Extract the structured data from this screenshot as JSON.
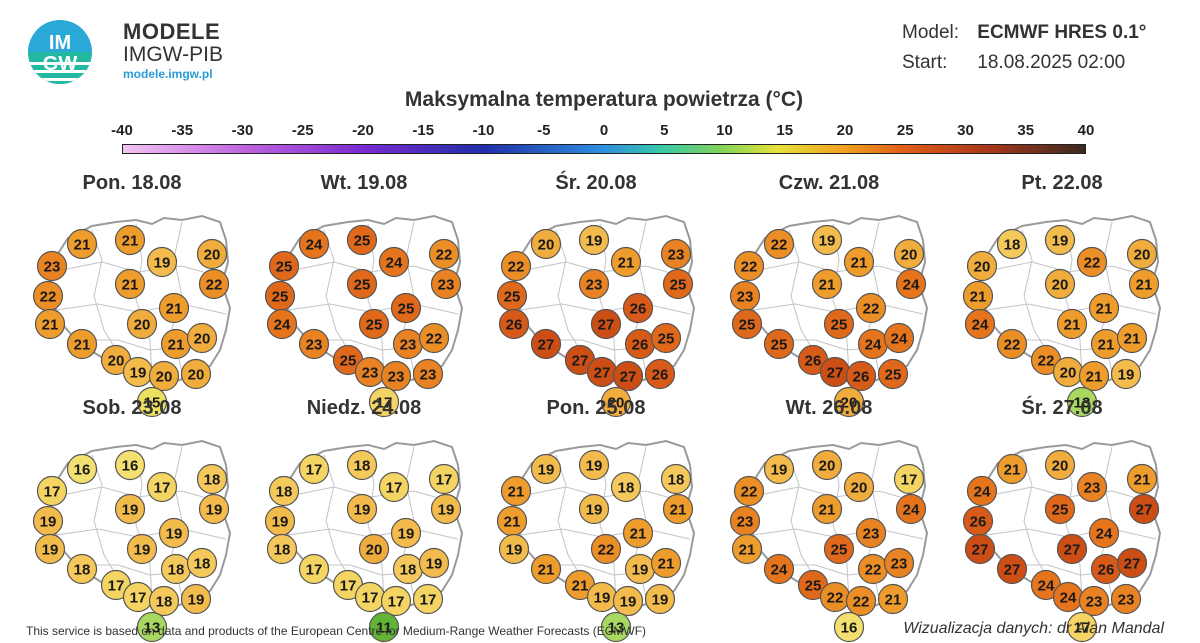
{
  "header": {
    "brand_name": "MODELE",
    "brand_org": "IMGW-PIB",
    "brand_url": "modele.imgw.pl",
    "logo_text_top": "IM",
    "logo_text_bottom": "GW",
    "model_label": "Model:",
    "model_value": "ECMWF HRES 0.1°",
    "start_label": "Start:",
    "start_value": "18.08.2025 02:00"
  },
  "title": "Maksymalna temperatura powietrza (°C)",
  "scale": {
    "ticks": [
      "-40",
      "-35",
      "-30",
      "-25",
      "-20",
      "-15",
      "-10",
      "-5",
      "0",
      "5",
      "10",
      "15",
      "20",
      "25",
      "30",
      "35",
      "40"
    ],
    "min": -40,
    "max": 40
  },
  "colors": {
    "t11": "#62b436",
    "t13": "#a8d860",
    "t15": "#ede060",
    "t16": "#f3e070",
    "t17": "#f4d462",
    "t18": "#f4c85a",
    "t19": "#f2bb4c",
    "t20": "#f0ac3c",
    "t21": "#ee9c2c",
    "t22": "#eb8e26",
    "t23": "#e98222",
    "t24": "#e5741c",
    "t25": "#e0681a",
    "t26": "#d85a18",
    "t27": "#cc4e14"
  },
  "maps": [
    {
      "label": "Pon. 18.08",
      "temps": [
        21,
        21,
        23,
        19,
        20,
        21,
        22,
        22,
        21,
        21,
        20,
        21,
        20,
        21,
        20,
        19,
        20,
        20,
        15
      ]
    },
    {
      "label": "Wt. 19.08",
      "temps": [
        24,
        25,
        25,
        24,
        22,
        25,
        25,
        23,
        25,
        24,
        25,
        23,
        22,
        23,
        25,
        23,
        23,
        23,
        17
      ]
    },
    {
      "label": "Śr. 20.08",
      "temps": [
        20,
        19,
        22,
        21,
        23,
        23,
        25,
        25,
        26,
        26,
        27,
        26,
        25,
        27,
        27,
        27,
        27,
        26,
        20
      ]
    },
    {
      "label": "Czw. 21.08",
      "temps": [
        22,
        19,
        22,
        21,
        20,
        21,
        23,
        24,
        22,
        25,
        25,
        24,
        24,
        25,
        26,
        27,
        26,
        25,
        20
      ]
    },
    {
      "label": "Pt. 22.08",
      "temps": [
        18,
        19,
        20,
        22,
        20,
        20,
        21,
        21,
        21,
        24,
        21,
        21,
        21,
        22,
        22,
        20,
        21,
        19,
        13
      ]
    },
    {
      "label": "Sob. 23.08",
      "temps": [
        16,
        16,
        17,
        17,
        18,
        19,
        19,
        19,
        19,
        19,
        19,
        18,
        18,
        18,
        17,
        17,
        18,
        19,
        13
      ]
    },
    {
      "label": "Niedz. 24.08",
      "temps": [
        17,
        18,
        18,
        17,
        17,
        19,
        19,
        19,
        19,
        18,
        20,
        18,
        19,
        17,
        17,
        17,
        17,
        17,
        11
      ]
    },
    {
      "label": "Pon. 25.08",
      "temps": [
        19,
        19,
        21,
        18,
        18,
        19,
        21,
        21,
        21,
        19,
        22,
        19,
        21,
        21,
        21,
        19,
        19,
        19,
        13
      ]
    },
    {
      "label": "Wt. 26.08",
      "temps": [
        19,
        20,
        22,
        20,
        17,
        21,
        23,
        24,
        23,
        21,
        25,
        22,
        23,
        24,
        25,
        22,
        22,
        21,
        16
      ]
    },
    {
      "label": "Śr. 27.08",
      "temps": [
        21,
        20,
        24,
        23,
        21,
        25,
        26,
        27,
        24,
        27,
        27,
        26,
        27,
        27,
        24,
        24,
        23,
        23,
        17
      ]
    }
  ],
  "footer": {
    "source": "This service is based on data and products of the European Centre for Medium-Range Weather Forecasts (ECMWF)",
    "credit": "Wizualizacja danych: dr Alan Mandal"
  }
}
